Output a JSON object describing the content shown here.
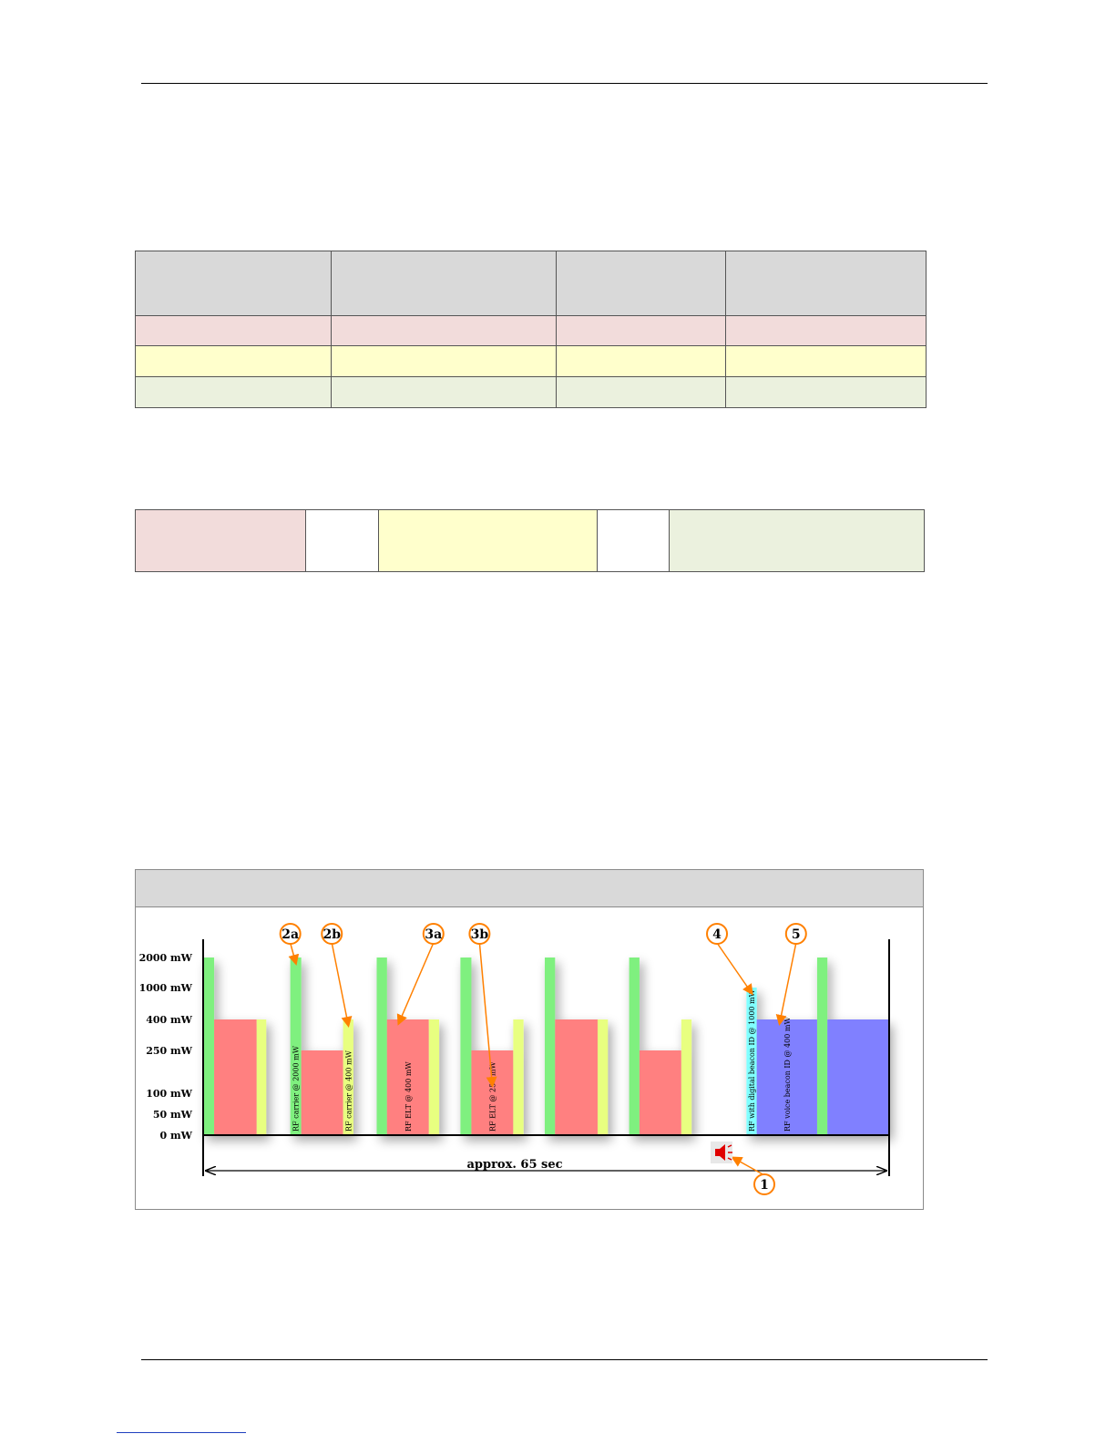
{
  "table1": {
    "header_color": "#d9d9d9",
    "row_colors": [
      "#f2dcdb",
      "#ffffcc",
      "#ebf1de"
    ]
  },
  "table2": {
    "cell_colors": [
      "#f2dcdb",
      "#ffffff",
      "#ffffcc",
      "#ffffff",
      "#ebf1de"
    ]
  },
  "chart_data": {
    "type": "bar",
    "title": "",
    "y_tick_labels": [
      "2000 mW",
      "1000 mW",
      "400 mW",
      "250 mW",
      "100 mW",
      "50 mW",
      "0 mW"
    ],
    "y_tick_values": [
      2000,
      1000,
      400,
      250,
      100,
      50,
      0
    ],
    "duration_label": "approx. 65 sec",
    "colors": {
      "carrier": "#7ff07f",
      "carrier_low": "#e8ff80",
      "elt": "#ff8080",
      "digital": "#80ffff",
      "voice": "#8080ff",
      "callout": "#ff8000"
    },
    "bars": [
      {
        "kind": "carrier",
        "x0": 0.0,
        "x1": 1.6,
        "value": 2000
      },
      {
        "kind": "elt",
        "x0": 1.6,
        "x1": 7.8,
        "value": 400
      },
      {
        "kind": "carrier_low",
        "x0": 7.8,
        "x1": 9.2,
        "value": 400
      },
      {
        "kind": "carrier",
        "x0": 12.7,
        "x1": 14.3,
        "value": 2000,
        "label": "RF carrier @ 2000 mW"
      },
      {
        "kind": "elt",
        "x0": 14.3,
        "x1": 20.4,
        "value": 250
      },
      {
        "kind": "carrier_low",
        "x0": 20.4,
        "x1": 21.9,
        "value": 400,
        "label": "RF carrier @ 400 mW"
      },
      {
        "kind": "carrier",
        "x0": 25.3,
        "x1": 26.8,
        "value": 2000
      },
      {
        "kind": "elt",
        "x0": 26.8,
        "x1": 32.9,
        "value": 400,
        "label": "RF ELT @ 400 mW"
      },
      {
        "kind": "carrier_low",
        "x0": 32.9,
        "x1": 34.4,
        "value": 400
      },
      {
        "kind": "carrier",
        "x0": 37.5,
        "x1": 39.1,
        "value": 2000
      },
      {
        "kind": "elt",
        "x0": 39.1,
        "x1": 45.2,
        "value": 250,
        "label": "RF ELT @ 250 mW"
      },
      {
        "kind": "carrier_low",
        "x0": 45.2,
        "x1": 46.7,
        "value": 400
      },
      {
        "kind": "carrier",
        "x0": 49.8,
        "x1": 51.3,
        "value": 2000
      },
      {
        "kind": "elt",
        "x0": 51.3,
        "x1": 57.5,
        "value": 400
      },
      {
        "kind": "carrier_low",
        "x0": 57.5,
        "x1": 59.0,
        "value": 400
      },
      {
        "kind": "carrier",
        "x0": 62.1,
        "x1": 63.6,
        "value": 2000
      },
      {
        "kind": "elt",
        "x0": 63.6,
        "x1": 69.7,
        "value": 250
      },
      {
        "kind": "carrier_low",
        "x0": 69.7,
        "x1": 71.2,
        "value": 400
      },
      {
        "kind": "digital",
        "x0": 79.2,
        "x1": 80.7,
        "value": 1000,
        "label": "RF with digital beacon ID @ 1000 mW"
      },
      {
        "kind": "voice",
        "x0": 80.7,
        "x1": 89.5,
        "value": 400,
        "label": "RF voice beacon ID @ 400 mW"
      },
      {
        "kind": "carrier",
        "x0": 89.5,
        "x1": 91.0,
        "value": 2000
      },
      {
        "kind": "voice",
        "x0": 91.0,
        "x1": 100.0,
        "value": 400
      }
    ],
    "callouts": [
      {
        "label": "1",
        "target": "speaker"
      },
      {
        "label": "2a",
        "target_bar": 3
      },
      {
        "label": "2b",
        "target_bar": 5
      },
      {
        "label": "3a",
        "target_bar": 7
      },
      {
        "label": "3b",
        "target_bar": 10
      },
      {
        "label": "4",
        "target_bar": 18
      },
      {
        "label": "5",
        "target_bar": 19
      }
    ]
  }
}
